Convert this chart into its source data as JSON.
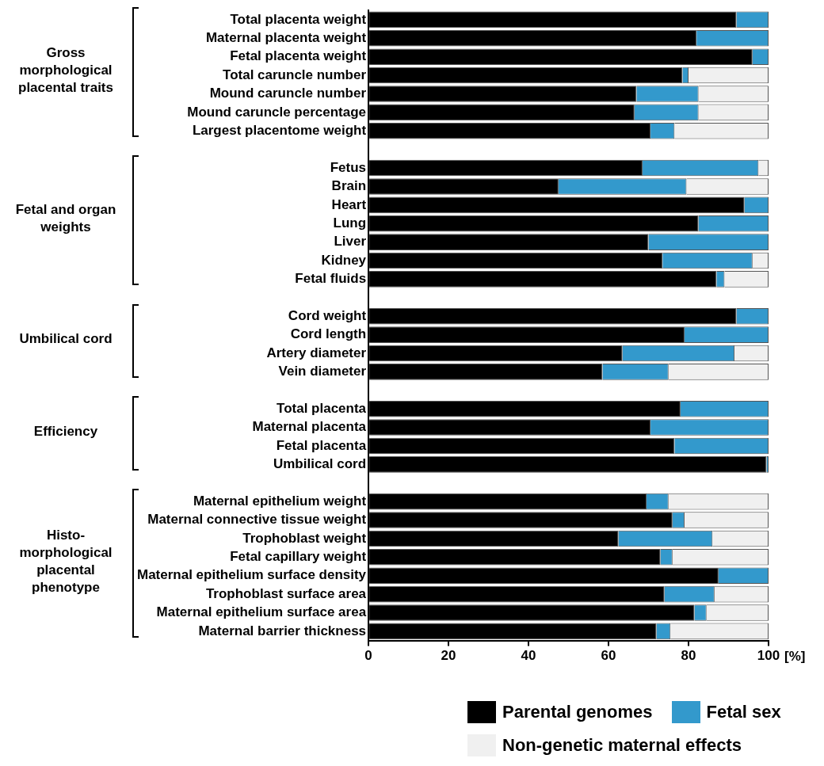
{
  "chart_data": {
    "type": "bar",
    "orientation": "horizontal",
    "stacked": true,
    "categories": [
      "Total placenta weight",
      "Maternal placenta weight",
      "Fetal placenta weight",
      "Total caruncle number",
      "Mound caruncle number",
      "Mound caruncle percentage",
      "Largest placentome weight",
      null,
      "Fetus",
      "Brain",
      "Heart",
      "Lung",
      "Liver",
      "Kidney",
      "Fetal fluids",
      null,
      "Cord weight",
      "Cord length",
      "Artery diameter",
      "Vein diameter",
      null,
      "Total placenta",
      "Maternal placenta",
      "Fetal placenta",
      "Umbilical cord",
      null,
      "Maternal epithelium weight",
      "Maternal connective tissue weight",
      "Trophoblast weight",
      "Fetal capillary weight",
      "Maternal epithelium surface density",
      "Trophoblast surface area",
      "Maternal epithelium surface area",
      "Maternal barrier thickness"
    ],
    "series": [
      {
        "name": "Parental genomes",
        "color": "#000000",
        "values": [
          92,
          82,
          96,
          78.5,
          67,
          66.5,
          70.5,
          null,
          68.5,
          47.5,
          94,
          82.5,
          70,
          73.5,
          87,
          null,
          92,
          79,
          63.5,
          58.5,
          null,
          78,
          70.5,
          76.5,
          99.5,
          null,
          69.5,
          76,
          62.5,
          73,
          87.5,
          74,
          81.5,
          72
        ]
      },
      {
        "name": "Fetal sex",
        "color": "#3399cc",
        "values": [
          8,
          18,
          4,
          1.5,
          15.5,
          16,
          6,
          null,
          29,
          32,
          6,
          17.5,
          30,
          22.5,
          2,
          null,
          8,
          21,
          28,
          16.5,
          null,
          22,
          29.5,
          23.5,
          0.5,
          null,
          5.5,
          3,
          23.5,
          3,
          12.5,
          12.5,
          3,
          3.5
        ]
      },
      {
        "name": "Non-genetic maternal effects",
        "color": "#f0f0f0",
        "values": [
          0,
          0,
          0,
          20,
          17.5,
          17.5,
          23.5,
          null,
          2.5,
          20.5,
          0,
          0,
          0,
          4,
          11,
          null,
          0,
          0,
          8.5,
          25,
          null,
          0,
          0,
          0,
          0,
          null,
          25,
          21,
          14,
          24,
          0,
          13.5,
          15.5,
          24.5
        ]
      }
    ],
    "xlim": [
      0,
      100
    ],
    "xticks": [
      0,
      20,
      40,
      60,
      80,
      100
    ],
    "xlabel": "[%]",
    "grid": false,
    "legend": "bottom",
    "annotations": [
      "Gross morphological placental traits",
      "Fetal and organ weights",
      "Umbilical cord",
      "Efficiency",
      "Histo-morphological placental phenotype"
    ]
  }
}
